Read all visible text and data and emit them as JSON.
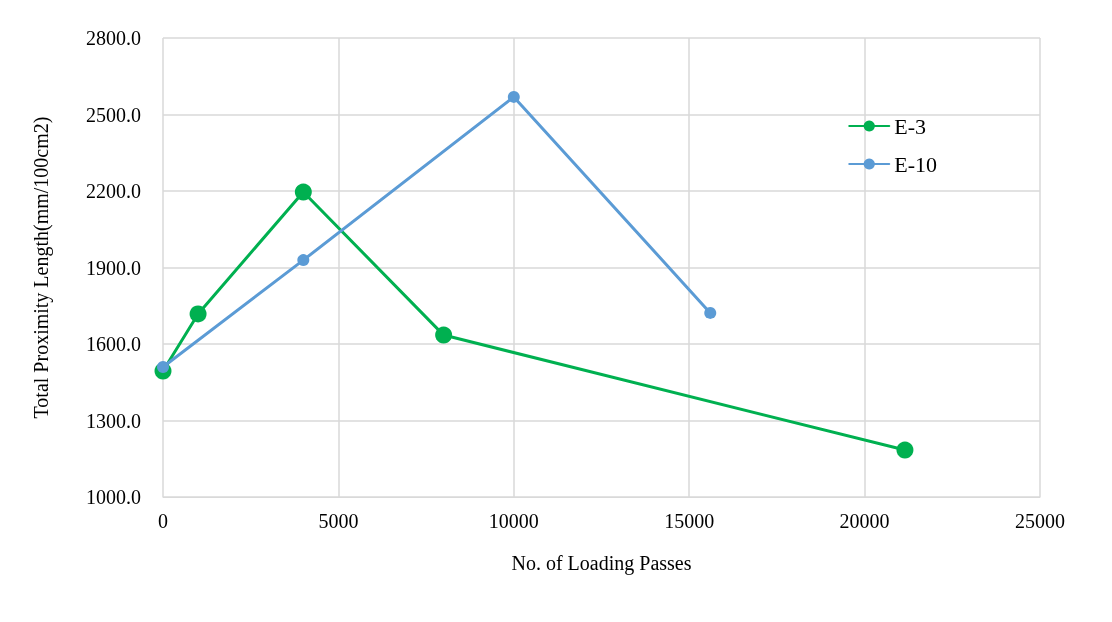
{
  "chart_data": {
    "type": "line",
    "xlabel": "No. of Loading Passes",
    "ylabel": "Total Proximity Length(mm/100cm2)",
    "series": [
      {
        "name": "E-3",
        "color": "#00b050",
        "x": [
          0,
          1000,
          4000,
          8000,
          21150
        ],
        "values": [
          1494,
          1718,
          2196,
          1635,
          1184
        ]
      },
      {
        "name": "E-10",
        "color": "#5b9bd5",
        "x": [
          0,
          4000,
          10000,
          15600
        ],
        "values": [
          1510,
          1929,
          2569,
          1722
        ]
      }
    ],
    "xlim": [
      0,
      25000
    ],
    "xticks": [
      0,
      5000,
      10000,
      15000,
      20000,
      25000
    ],
    "ylim": [
      1000,
      2800
    ],
    "yticks": [
      {
        "value": 1000,
        "label": "1000.0"
      },
      {
        "value": 1300,
        "label": "1300.0"
      },
      {
        "value": 1600,
        "label": "1600.0"
      },
      {
        "value": 1900,
        "label": "1900.0"
      },
      {
        "value": 2200,
        "label": "2200.0"
      },
      {
        "value": 2500,
        "label": "2500.0"
      },
      {
        "value": 2800,
        "label": "2800.0"
      }
    ],
    "grid": true,
    "legend": "top right",
    "marker": "circle",
    "line_style": "solid"
  }
}
